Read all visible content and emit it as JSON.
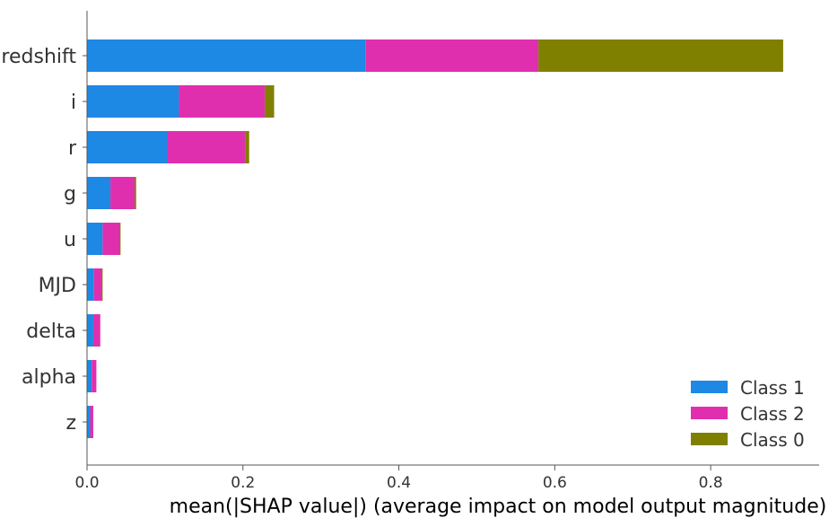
{
  "chart_data": {
    "type": "bar",
    "orientation": "horizontal",
    "stacked": true,
    "title": "",
    "xlabel": "mean(|SHAP value|) (average impact on model output magnitude)",
    "ylabel": "",
    "xlim": [
      0,
      0.94
    ],
    "xticks": [
      0.0,
      0.2,
      0.4,
      0.6,
      0.8
    ],
    "xtick_labels": [
      "0.0",
      "0.2",
      "0.4",
      "0.6",
      "0.8"
    ],
    "categories": [
      "redshift",
      "i",
      "r",
      "g",
      "u",
      "MJD",
      "delta",
      "alpha",
      "z"
    ],
    "series": [
      {
        "name": "Class 1",
        "color": "#1E88E5",
        "values": [
          0.357,
          0.118,
          0.103,
          0.03,
          0.02,
          0.009,
          0.008,
          0.006,
          0.004
        ]
      },
      {
        "name": "Class 2",
        "color": "#E02FAE",
        "values": [
          0.222,
          0.11,
          0.1,
          0.031,
          0.022,
          0.01,
          0.009,
          0.006,
          0.004
        ]
      },
      {
        "name": "Class 0",
        "color": "#808000",
        "values": [
          0.314,
          0.012,
          0.005,
          0.002,
          0.001,
          0.001,
          0.0,
          0.0,
          0.0
        ]
      }
    ],
    "legend": {
      "position": "bottom-right",
      "entries": [
        "Class 1",
        "Class 2",
        "Class 0"
      ]
    },
    "grid": false
  }
}
